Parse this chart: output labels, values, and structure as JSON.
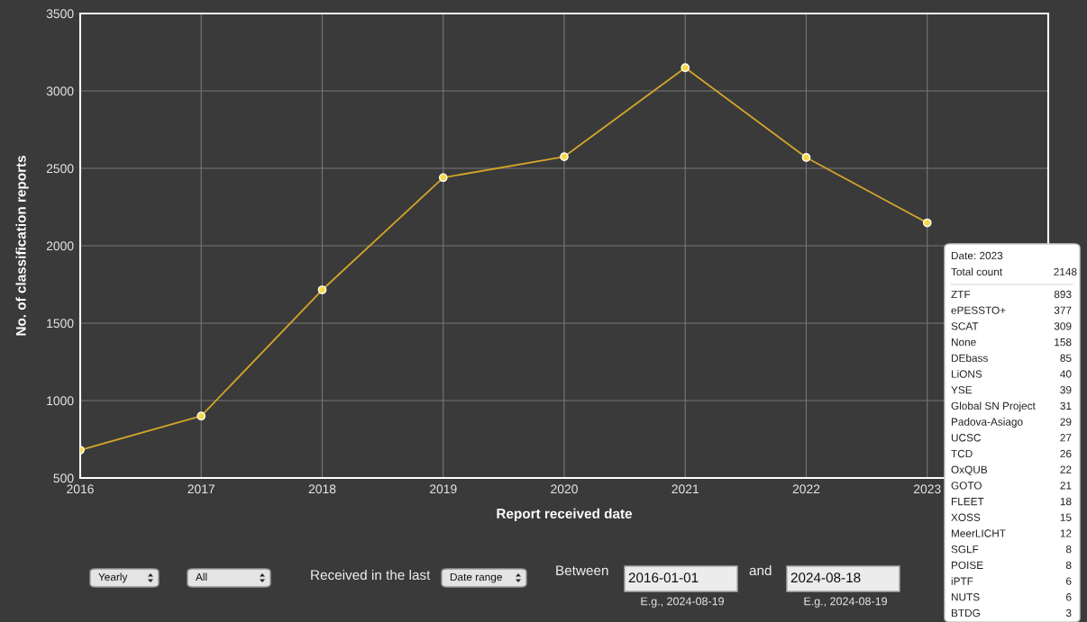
{
  "chart_data": {
    "type": "line",
    "xlabel": "Report received date",
    "ylabel": "No. of classification reports",
    "x": [
      2016,
      2017,
      2018,
      2019,
      2020,
      2021,
      2022,
      2023
    ],
    "series": [
      {
        "color": "#d4a52a",
        "values": [
          680,
          900,
          1715,
          2440,
          2575,
          3150,
          2570,
          2148
        ]
      }
    ],
    "xlim": [
      2016,
      2024
    ],
    "xticks": [
      2016,
      2017,
      2018,
      2019,
      2020,
      2021,
      2022,
      2023
    ],
    "ylim": [
      500,
      3500
    ],
    "yticks": [
      500,
      1000,
      1500,
      2000,
      2500,
      3000,
      3500
    ],
    "grid": true,
    "marker": "circle",
    "line_style": "solid",
    "annotations": [
      "Date: 2023",
      "Total count",
      "2148",
      "ZTF",
      "893",
      "ePESSTO+",
      "377",
      "SCAT",
      "309",
      "None",
      "158",
      "DEbass",
      "85",
      "LiONS",
      "40",
      "YSE",
      "39",
      "Global SN Project",
      "31",
      "Padova-Asiago",
      "29",
      "UCSC",
      "27",
      "TCD",
      "26",
      "OxQUB",
      "22",
      "GOTO",
      "21",
      "FLEET",
      "18",
      "XOSS",
      "15",
      "MeerLICHT",
      "12",
      "SGLF",
      "8",
      "POISE",
      "8",
      "iPTF",
      "6",
      "NUTS",
      "6",
      "BTDG",
      "3",
      "Yearly",
      "All",
      "Received in the last",
      "Date range",
      "Between",
      "2016-01-01",
      "and",
      "2024-08-18",
      "E.g., 2024-08-19",
      "E.g., 2024-08-19"
    ]
  }
}
